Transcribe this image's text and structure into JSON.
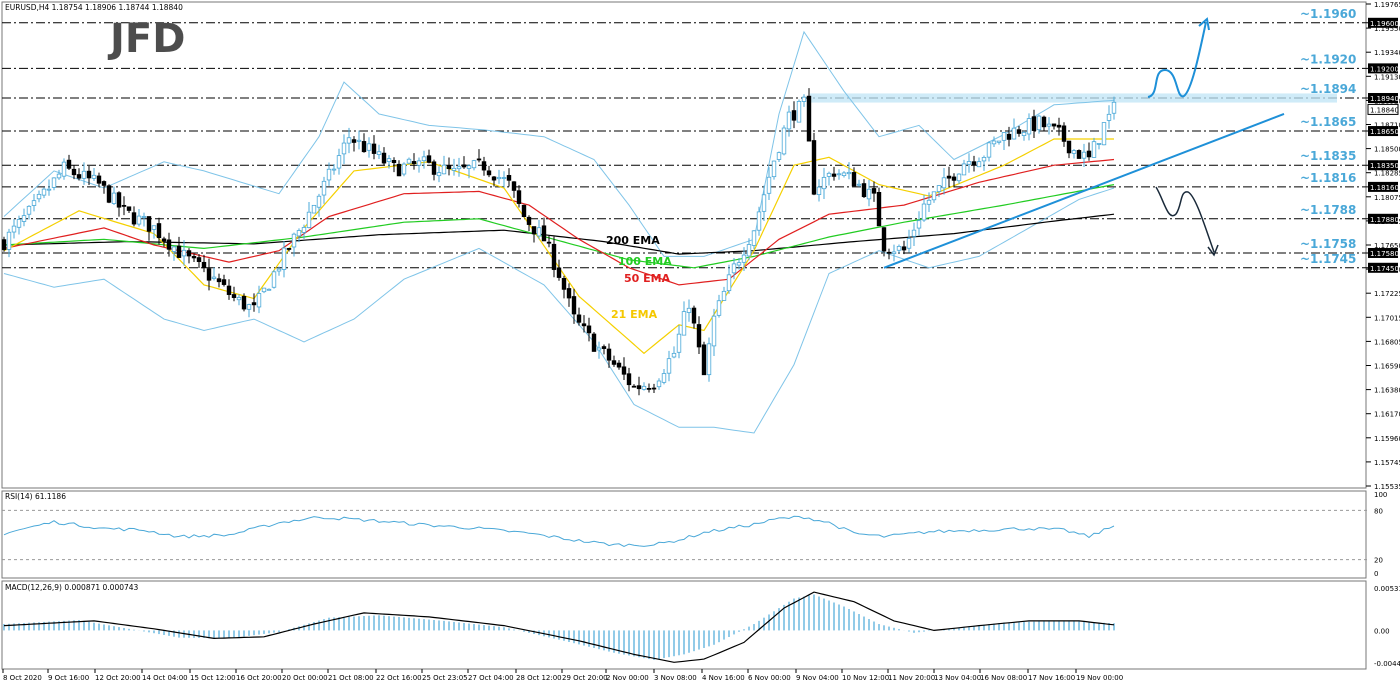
{
  "header": {
    "main": "EURUSD,H4  1.18754 1.18906 1.18744 1.18840",
    "rsi": "RSI(14) 61.1186",
    "macd": "MACD(12,26,9) 0.000871 0.000743"
  },
  "logo": "JFD",
  "colors": {
    "bull": "#4aa8d8",
    "bear": "#000000",
    "ema21": "#f5d000",
    "ema50": "#e02020",
    "ema100": "#22cc22",
    "ema200": "#000000",
    "bollinger": "#7fc4e8",
    "level_text": "#4aa8d8",
    "trendline": "#1e90d8",
    "rsi_line": "#4aa8d8",
    "macd_hist": "#4aa8d8",
    "macd_signal": "#000000"
  },
  "ema_labels": [
    {
      "text": "200 EMA",
      "color": "#000000"
    },
    {
      "text": "100 EMA",
      "color": "#22cc22"
    },
    {
      "text": "50 EMA",
      "color": "#e02020"
    },
    {
      "text": "21 EMA",
      "color": "#f5c800"
    }
  ],
  "chart_data": {
    "type": "candlestick",
    "symbol": "EURUSD",
    "timeframe": "H4",
    "ylim": [
      1.15535,
      1.19765
    ],
    "y_ticks": [
      "1.19765",
      "1.19550",
      "1.19340",
      "1.19130",
      "1.18920",
      "1.18710",
      "1.18500",
      "1.18285",
      "1.18075",
      "1.17865",
      "1.17650",
      "1.17440",
      "1.17225",
      "1.17015",
      "1.16805",
      "1.16590",
      "1.16380",
      "1.16170",
      "1.15960",
      "1.15745",
      "1.15535"
    ],
    "x_labels": [
      "8 Oct 2020",
      "9 Oct 16:00",
      "12 Oct 20:00",
      "14 Oct 04:00",
      "15 Oct 12:00",
      "16 Oct 20:00",
      "20 Oct 00:00",
      "21 Oct 08:00",
      "22 Oct 16:00",
      "25 Oct 23:05",
      "27 Oct 04:00",
      "28 Oct 12:00",
      "29 Oct 20:00",
      "2 Nov 00:00",
      "3 Nov 08:00",
      "4 Nov 16:00",
      "6 Nov 00:00",
      "9 Nov 04:00",
      "10 Nov 12:00",
      "11 Nov 20:00",
      "13 Nov 04:00",
      "16 Nov 08:00",
      "17 Nov 16:00",
      "19 Nov 00:00"
    ],
    "horizontal_levels": [
      {
        "label": "~1.1960",
        "tag": "1.19600",
        "value": 1.196
      },
      {
        "label": "~1.1920",
        "tag": "1.19200",
        "value": 1.192
      },
      {
        "label": "~1.1894",
        "tag": "1.18940",
        "value": 1.1894
      },
      {
        "label": "~1.1865",
        "tag": "1.18650",
        "value": 1.1865
      },
      {
        "label": "~1.1835",
        "tag": "1.18350",
        "value": 1.1835
      },
      {
        "label": "~1.1816",
        "tag": "1.18160",
        "value": 1.1816
      },
      {
        "label": "~1.1788",
        "tag": "1.17880",
        "value": 1.1788
      },
      {
        "label": "~1.1758",
        "tag": "1.17580",
        "value": 1.1758
      },
      {
        "label": "~1.1745",
        "tag": "1.17450",
        "value": 1.1745
      }
    ],
    "current_price": {
      "tag": "1.18840",
      "value": 1.1884
    },
    "close_anchors": [
      [
        0,
        1.1768
      ],
      [
        6,
        1.1798
      ],
      [
        12,
        1.1832
      ],
      [
        19,
        1.1818
      ],
      [
        24,
        1.1794
      ],
      [
        30,
        1.178
      ],
      [
        36,
        1.1755
      ],
      [
        42,
        1.1735
      ],
      [
        46,
        1.1718
      ],
      [
        50,
        1.1708
      ],
      [
        55,
        1.1748
      ],
      [
        60,
        1.1785
      ],
      [
        65,
        1.1825
      ],
      [
        69,
        1.186
      ],
      [
        73,
        1.1848
      ],
      [
        78,
        1.1832
      ],
      [
        84,
        1.1836
      ],
      [
        90,
        1.1828
      ],
      [
        96,
        1.1835
      ],
      [
        101,
        1.1818
      ],
      [
        104,
        1.179
      ],
      [
        108,
        1.177
      ],
      [
        111,
        1.174
      ],
      [
        114,
        1.17
      ],
      [
        118,
        1.1678
      ],
      [
        122,
        1.166
      ],
      [
        126,
        1.164
      ],
      [
        130,
        1.1645
      ],
      [
        134,
        1.167
      ],
      [
        137,
        1.1715
      ],
      [
        140,
        1.165
      ],
      [
        142,
        1.17
      ],
      [
        146,
        1.1745
      ],
      [
        150,
        1.178
      ],
      [
        154,
        1.184
      ],
      [
        157,
        1.1878
      ],
      [
        160,
        1.1888
      ],
      [
        162,
        1.1815
      ],
      [
        166,
        1.183
      ],
      [
        170,
        1.1822
      ],
      [
        174,
        1.1805
      ],
      [
        176,
        1.1765
      ],
      [
        180,
        1.176
      ],
      [
        184,
        1.18
      ],
      [
        188,
        1.1818
      ],
      [
        192,
        1.1838
      ],
      [
        196,
        1.1845
      ],
      [
        200,
        1.1862
      ],
      [
        204,
        1.1868
      ],
      [
        207,
        1.1872
      ],
      [
        211,
        1.1862
      ],
      [
        214,
        1.1848
      ],
      [
        217,
        1.184
      ],
      [
        220,
        1.187
      ],
      [
        222,
        1.1884
      ]
    ],
    "ema_anchors": {
      "ema21": [
        [
          0,
          1.176
        ],
        [
          15,
          1.1795
        ],
        [
          30,
          1.1775
        ],
        [
          40,
          1.173
        ],
        [
          50,
          1.1718
        ],
        [
          60,
          1.178
        ],
        [
          70,
          1.183
        ],
        [
          85,
          1.1838
        ],
        [
          100,
          1.1815
        ],
        [
          115,
          1.172
        ],
        [
          128,
          1.167
        ],
        [
          135,
          1.1695
        ],
        [
          140,
          1.169
        ],
        [
          150,
          1.176
        ],
        [
          158,
          1.1835
        ],
        [
          165,
          1.1842
        ],
        [
          175,
          1.1818
        ],
        [
          185,
          1.1808
        ],
        [
          200,
          1.1835
        ],
        [
          210,
          1.1858
        ],
        [
          222,
          1.1858
        ]
      ],
      "ema50": [
        [
          0,
          1.1762
        ],
        [
          20,
          1.178
        ],
        [
          30,
          1.1765
        ],
        [
          45,
          1.175
        ],
        [
          55,
          1.176
        ],
        [
          65,
          1.179
        ],
        [
          80,
          1.181
        ],
        [
          95,
          1.1812
        ],
        [
          105,
          1.18
        ],
        [
          115,
          1.177
        ],
        [
          125,
          1.1745
        ],
        [
          135,
          1.173
        ],
        [
          145,
          1.1735
        ],
        [
          155,
          1.177
        ],
        [
          165,
          1.1792
        ],
        [
          180,
          1.18
        ],
        [
          195,
          1.182
        ],
        [
          210,
          1.1835
        ],
        [
          222,
          1.184
        ]
      ],
      "ema100": [
        [
          0,
          1.1765
        ],
        [
          20,
          1.177
        ],
        [
          40,
          1.1762
        ],
        [
          60,
          1.1772
        ],
        [
          80,
          1.1785
        ],
        [
          95,
          1.1788
        ],
        [
          110,
          1.177
        ],
        [
          125,
          1.1752
        ],
        [
          138,
          1.1745
        ],
        [
          150,
          1.1755
        ],
        [
          165,
          1.1772
        ],
        [
          180,
          1.1785
        ],
        [
          200,
          1.18
        ],
        [
          222,
          1.1818
        ]
      ],
      "ema200": [
        [
          0,
          1.1765
        ],
        [
          25,
          1.1768
        ],
        [
          50,
          1.1766
        ],
        [
          75,
          1.1774
        ],
        [
          100,
          1.1778
        ],
        [
          120,
          1.1768
        ],
        [
          135,
          1.1757
        ],
        [
          150,
          1.176
        ],
        [
          170,
          1.1768
        ],
        [
          190,
          1.1775
        ],
        [
          210,
          1.1786
        ],
        [
          222,
          1.1792
        ]
      ]
    },
    "bollinger_anchors": {
      "upper": [
        [
          0,
          1.179
        ],
        [
          10,
          1.183
        ],
        [
          20,
          1.1815
        ],
        [
          32,
          1.1838
        ],
        [
          40,
          1.183
        ],
        [
          55,
          1.181
        ],
        [
          63,
          1.186
        ],
        [
          68,
          1.1908
        ],
        [
          75,
          1.188
        ],
        [
          85,
          1.187
        ],
        [
          96,
          1.1866
        ],
        [
          108,
          1.186
        ],
        [
          118,
          1.184
        ],
        [
          125,
          1.18
        ],
        [
          132,
          1.1755
        ],
        [
          140,
          1.1755
        ],
        [
          150,
          1.177
        ],
        [
          155,
          1.188
        ],
        [
          160,
          1.1952
        ],
        [
          168,
          1.19
        ],
        [
          175,
          1.186
        ],
        [
          183,
          1.187
        ],
        [
          190,
          1.184
        ],
        [
          200,
          1.1862
        ],
        [
          210,
          1.1888
        ],
        [
          222,
          1.1892
        ]
      ],
      "lower": [
        [
          0,
          1.174
        ],
        [
          10,
          1.1728
        ],
        [
          20,
          1.1735
        ],
        [
          32,
          1.17
        ],
        [
          40,
          1.169
        ],
        [
          50,
          1.17
        ],
        [
          60,
          1.168
        ],
        [
          70,
          1.17
        ],
        [
          80,
          1.1735
        ],
        [
          95,
          1.1762
        ],
        [
          108,
          1.173
        ],
        [
          118,
          1.168
        ],
        [
          126,
          1.1625
        ],
        [
          135,
          1.1605
        ],
        [
          142,
          1.1605
        ],
        [
          150,
          1.16
        ],
        [
          158,
          1.166
        ],
        [
          165,
          1.174
        ],
        [
          175,
          1.176
        ],
        [
          185,
          1.1745
        ],
        [
          195,
          1.1755
        ],
        [
          205,
          1.178
        ],
        [
          215,
          1.1805
        ],
        [
          222,
          1.1815
        ]
      ]
    },
    "trendline": {
      "from": [
        176,
        1.1745
      ],
      "to": [
        256,
        1.188
      ]
    },
    "resistance_zone": [
      1.189,
      1.1898
    ],
    "scenario_up": "path from ~1.1894 retest breaking toward ~1.1960",
    "scenario_down": "path from ~1.1816 dropping toward ~1.1758",
    "rsi": {
      "ylim": [
        0,
        100
      ],
      "ticks": [
        "100",
        "80",
        "20",
        "0"
      ],
      "levels": [
        80,
        20
      ],
      "anchors": [
        [
          0,
          52
        ],
        [
          10,
          66
        ],
        [
          20,
          58
        ],
        [
          28,
          56
        ],
        [
          35,
          48
        ],
        [
          45,
          50
        ],
        [
          55,
          65
        ],
        [
          63,
          72
        ],
        [
          68,
          70
        ],
        [
          75,
          67
        ],
        [
          85,
          62
        ],
        [
          95,
          58
        ],
        [
          105,
          52
        ],
        [
          115,
          43
        ],
        [
          122,
          38
        ],
        [
          130,
          38
        ],
        [
          135,
          44
        ],
        [
          140,
          53
        ],
        [
          145,
          58
        ],
        [
          150,
          63
        ],
        [
          155,
          70
        ],
        [
          160,
          72
        ],
        [
          165,
          65
        ],
        [
          170,
          52
        ],
        [
          176,
          48
        ],
        [
          185,
          54
        ],
        [
          195,
          56
        ],
        [
          205,
          58
        ],
        [
          212,
          56
        ],
        [
          217,
          48
        ],
        [
          222,
          61
        ]
      ]
    },
    "macd": {
      "ylim": [
        -0.00446,
        0.005319
      ],
      "ticks": [
        "0.005319",
        "0.00",
        "-0.00446"
      ],
      "hist_anchors": [
        [
          0,
          0.0008
        ],
        [
          15,
          0.0013
        ],
        [
          25,
          0.0002
        ],
        [
          35,
          -0.0009
        ],
        [
          45,
          -0.001
        ],
        [
          55,
          -0.0002
        ],
        [
          65,
          0.0016
        ],
        [
          75,
          0.0019
        ],
        [
          88,
          0.0012
        ],
        [
          100,
          0.0004
        ],
        [
          112,
          -0.0013
        ],
        [
          122,
          -0.0028
        ],
        [
          130,
          -0.0037
        ],
        [
          136,
          -0.003
        ],
        [
          142,
          -0.0018
        ],
        [
          150,
          0.0008
        ],
        [
          158,
          0.004
        ],
        [
          162,
          0.0045
        ],
        [
          168,
          0.003
        ],
        [
          175,
          0.0008
        ],
        [
          182,
          -0.0003
        ],
        [
          190,
          0.0003
        ],
        [
          200,
          0.001
        ],
        [
          212,
          0.0012
        ],
        [
          222,
          0.0009
        ]
      ],
      "signal_anchors": [
        [
          0,
          0.0006
        ],
        [
          18,
          0.0012
        ],
        [
          30,
          0.0002
        ],
        [
          42,
          -0.001
        ],
        [
          52,
          -0.0008
        ],
        [
          62,
          0.0008
        ],
        [
          72,
          0.0022
        ],
        [
          85,
          0.0017
        ],
        [
          100,
          0.0006
        ],
        [
          115,
          -0.0013
        ],
        [
          126,
          -0.003
        ],
        [
          134,
          -0.004
        ],
        [
          140,
          -0.0036
        ],
        [
          148,
          -0.0015
        ],
        [
          156,
          0.0028
        ],
        [
          162,
          0.0048
        ],
        [
          170,
          0.0036
        ],
        [
          178,
          0.0012
        ],
        [
          186,
          0.0
        ],
        [
          195,
          0.0006
        ],
        [
          205,
          0.0012
        ],
        [
          215,
          0.0012
        ],
        [
          222,
          0.0007
        ]
      ]
    }
  }
}
